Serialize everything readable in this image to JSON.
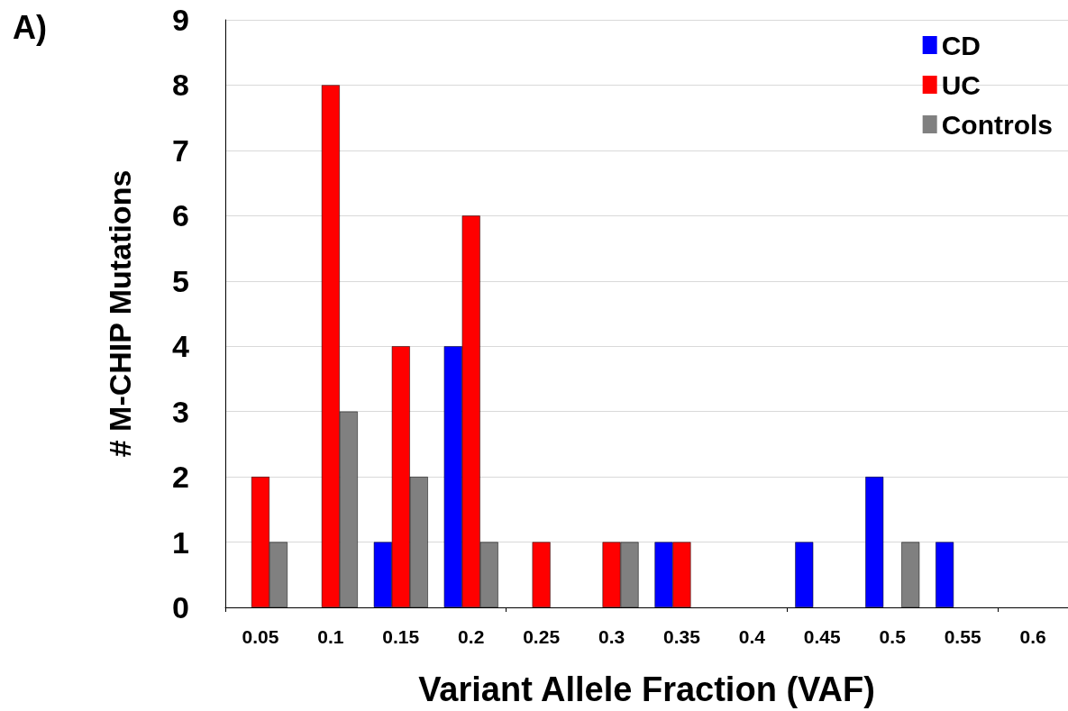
{
  "chart_data": {
    "type": "bar",
    "xlabel": "Variant Allele Fraction (VAF)",
    "ylabel": "# M-CHIP Mutations",
    "annotations": [
      "A)"
    ],
    "categories": [
      "0.05",
      "0.1",
      "0.15",
      "0.2",
      "0.25",
      "0.3",
      "0.35",
      "0.4",
      "0.45",
      "0.5",
      "0.55",
      "0.6"
    ],
    "series": [
      {
        "name": "CD",
        "color": "#0000ff",
        "values": [
          0,
          0,
          1,
          4,
          0,
          0,
          1,
          0,
          1,
          2,
          1,
          0
        ]
      },
      {
        "name": "UC",
        "color": "#ff0000",
        "values": [
          2,
          8,
          4,
          6,
          1,
          1,
          1,
          0,
          0,
          0,
          0,
          0
        ]
      },
      {
        "name": "Controls",
        "color": "#808080",
        "values": [
          1,
          3,
          2,
          1,
          0,
          1,
          0,
          0,
          0,
          1,
          0,
          0
        ]
      }
    ],
    "ylim": [
      0,
      9
    ],
    "yticks": [
      0,
      1,
      2,
      3,
      4,
      5,
      6,
      7,
      8,
      9
    ],
    "grid": "y",
    "legend": "top right"
  }
}
